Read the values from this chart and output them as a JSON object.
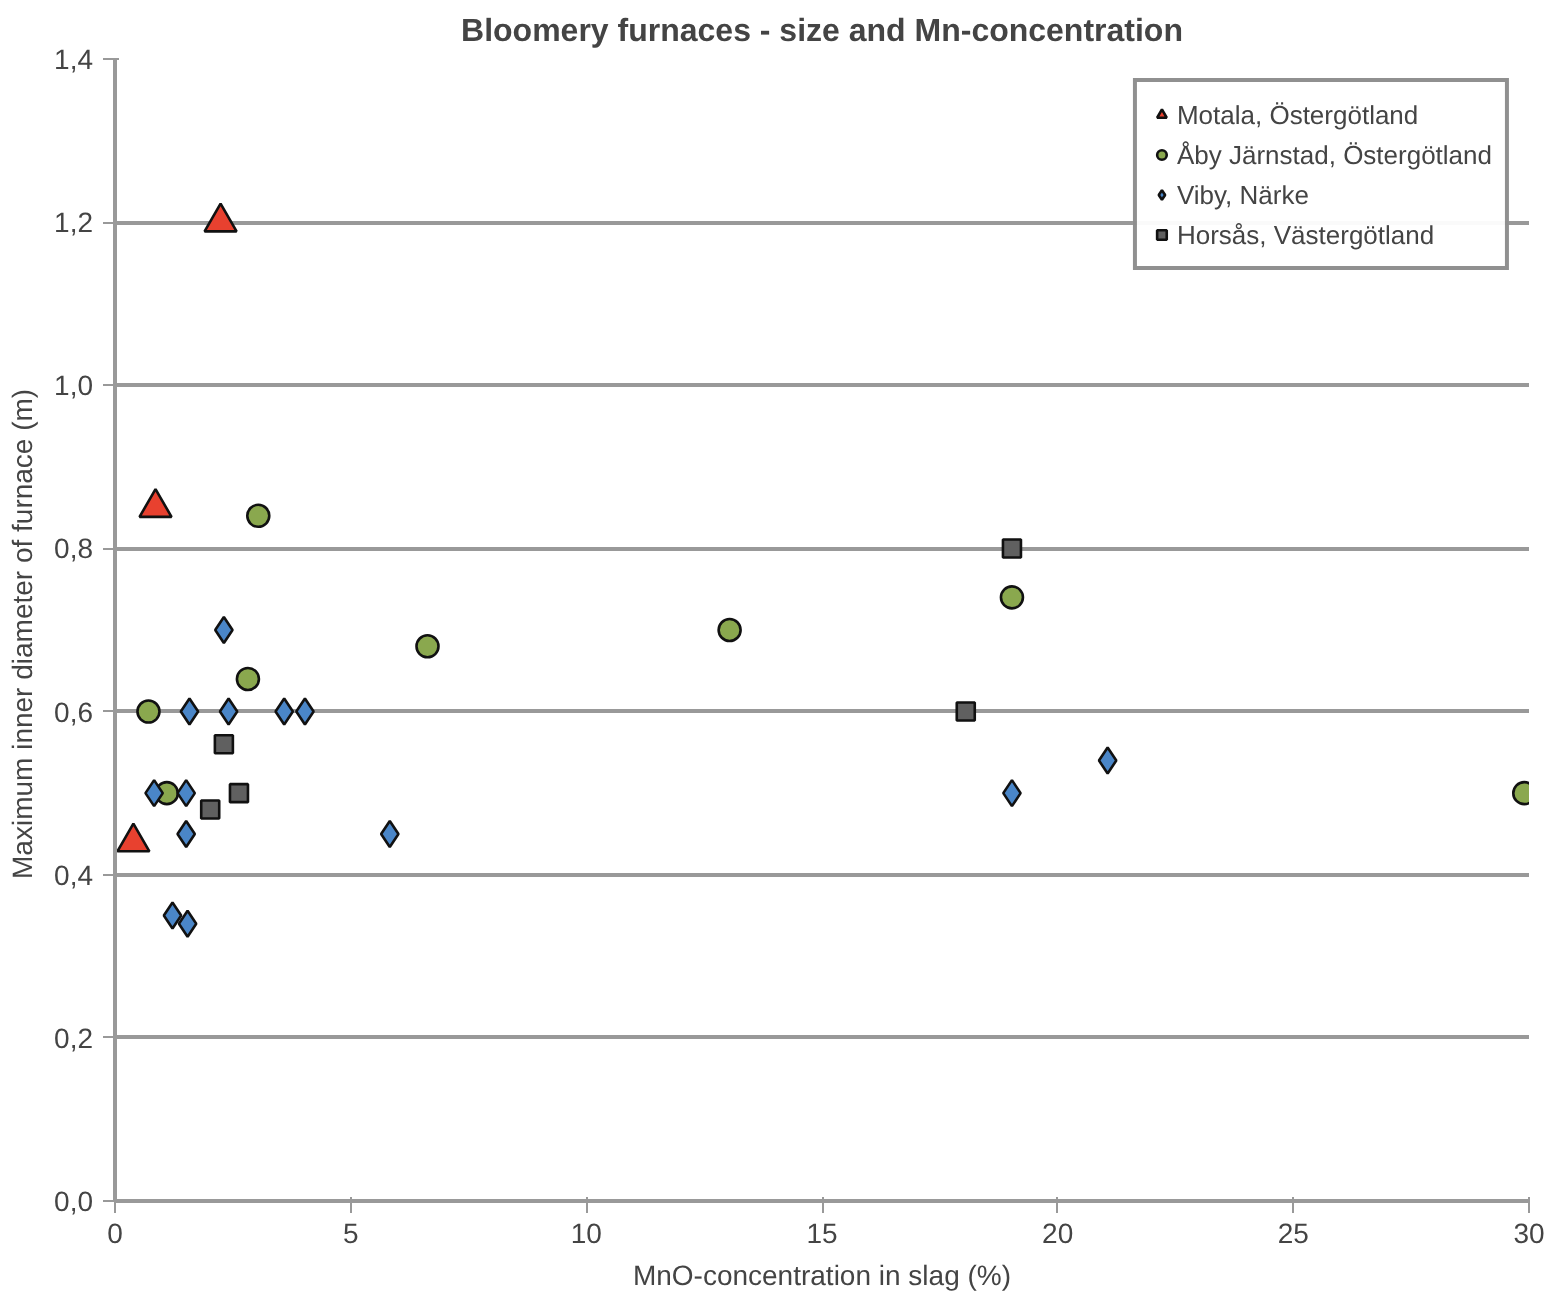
{
  "chart_data": {
    "type": "scatter",
    "title": "Bloomery furnaces - size and Mn-concentration",
    "xlabel": "MnO-concentration in slag (%)",
    "ylabel": "Maximum inner diameter of furnace  (m)",
    "xlim": [
      0,
      30
    ],
    "xticks": [
      0,
      5,
      10,
      15,
      20,
      25,
      30
    ],
    "ylim": [
      0,
      1.4
    ],
    "yticks": [
      {
        "value": 0,
        "label": "0,0"
      },
      {
        "value": 0.2,
        "label": "0,2"
      },
      {
        "value": 0.4,
        "label": "0,4"
      },
      {
        "value": 0.6,
        "label": "0,6"
      },
      {
        "value": 0.8,
        "label": "0,8"
      },
      {
        "value": 1.0,
        "label": "1,0"
      },
      {
        "value": 1.2,
        "label": "1,2"
      },
      {
        "value": 1.4,
        "label": "1,4"
      }
    ],
    "grid": "y",
    "legend": "top right",
    "series": [
      {
        "name": "Motala, Östergötland",
        "color": "#e8412f",
        "marker": "triangle",
        "x": [
          2.24,
          0.86,
          0.39
        ],
        "values": [
          1.2,
          0.85,
          0.44
        ]
      },
      {
        "name": "Åby Järnstad, Östergötland",
        "color": "#8aa84e",
        "marker": "circle",
        "x": [
          3.04,
          6.63,
          2.82,
          0.71,
          1.1,
          13.04,
          19.03,
          29.9
        ],
        "values": [
          0.84,
          0.68,
          0.64,
          0.6,
          0.5,
          0.7,
          0.74,
          0.5
        ]
      },
      {
        "name": "Viby, Närke",
        "color": "#4a86c8",
        "marker": "diamond",
        "x": [
          2.31,
          1.58,
          2.41,
          3.59,
          4.03,
          0.83,
          1.51,
          1.51,
          5.83,
          1.22,
          1.54,
          19.03,
          21.06
        ],
        "values": [
          0.7,
          0.6,
          0.6,
          0.6,
          0.6,
          0.5,
          0.5,
          0.45,
          0.45,
          0.35,
          0.34,
          0.5,
          0.54
        ]
      },
      {
        "name": "Horsås, Västergötland",
        "color": "#606060",
        "marker": "square",
        "x": [
          19.03,
          18.05,
          2.31,
          2.63,
          2.02
        ],
        "values": [
          0.8,
          0.6,
          0.56,
          0.5,
          0.48
        ]
      }
    ]
  }
}
